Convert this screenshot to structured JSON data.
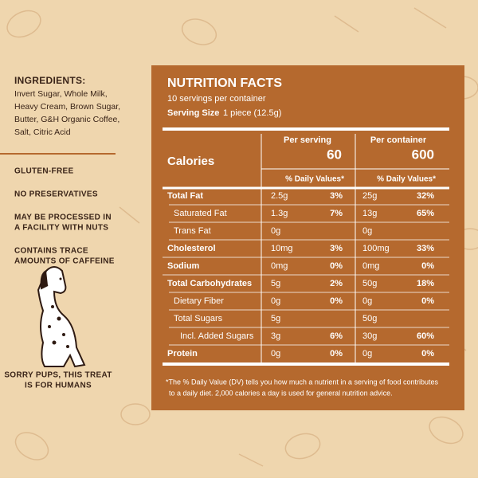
{
  "ingredients": {
    "title": "INGREDIENTS:",
    "lines": [
      "Invert Sugar, Whole Milk,",
      "Heavy Cream, Brown Sugar,",
      "Butter, G&H Organic Coffee,",
      "Salt, Citric Acid"
    ]
  },
  "claims": [
    [
      "GLUTEN-FREE"
    ],
    [
      "NO PRESERVATIVES"
    ],
    [
      "MAY BE PROCESSED IN",
      "A FACILITY WITH NUTS"
    ],
    [
      "CONTAINS TRACE",
      "AMOUNTS OF CAFFEINE"
    ]
  ],
  "dog_caption": [
    "SORRY PUPS, THIS TREAT",
    "IS FOR HUMANS"
  ],
  "nutrition": {
    "title": "NUTRITION FACTS",
    "servings": "10 servings per container",
    "serving_size_label": "Serving Size",
    "serving_size": "1 piece (12.5g)",
    "calories_label": "Calories",
    "per_serving_label": "Per serving",
    "per_container_label": "Per container",
    "calories_serving": "60",
    "calories_container": "600",
    "dv_header": "% Daily Values*",
    "rows": [
      {
        "name": "Total Fat",
        "bold": true,
        "indent": 0,
        "serving": "2.5g",
        "serving_dv": "3%",
        "container": "25g",
        "container_dv": "32%"
      },
      {
        "name": "Saturated Fat",
        "bold": false,
        "indent": 1,
        "serving": "1.3g",
        "serving_dv": "7%",
        "container": "13g",
        "container_dv": "65%"
      },
      {
        "name": "Trans Fat",
        "bold": false,
        "indent": 1,
        "serving": "0g",
        "container": "0g"
      },
      {
        "name": "Cholesterol",
        "bold": true,
        "indent": 0,
        "serving": "10mg",
        "serving_dv": "3%",
        "container": "100mg",
        "container_dv": "33%"
      },
      {
        "name": "Sodium",
        "bold": true,
        "indent": 0,
        "serving": "0mg",
        "serving_dv": "0%",
        "container": "0mg",
        "container_dv": "0%"
      },
      {
        "name": "Total Carbohydrates",
        "bold": true,
        "indent": 0,
        "serving": "5g",
        "serving_dv": "2%",
        "container": "50g",
        "container_dv": "18%"
      },
      {
        "name": "Dietary Fiber",
        "bold": false,
        "indent": 1,
        "serving": "0g",
        "serving_dv": "0%",
        "container": "0g",
        "container_dv": "0%"
      },
      {
        "name": "Total Sugars",
        "bold": false,
        "indent": 1,
        "serving": "5g",
        "container": "50g"
      },
      {
        "name": "Incl. Added Sugars",
        "bold": false,
        "indent": 2,
        "serving": "3g",
        "serving_dv": "6%",
        "container": "30g",
        "container_dv": "60%"
      },
      {
        "name": "Protein",
        "bold": true,
        "indent": 0,
        "serving": "0g",
        "serving_dv": "0%",
        "container": "0g",
        "container_dv": "0%"
      }
    ],
    "footnote": [
      "*The % Daily Value (DV) tells you how much a nutrient in a serving of food contributes",
      "to a daily diet. 2,000 calories a day is used for general nutrition advice."
    ]
  }
}
